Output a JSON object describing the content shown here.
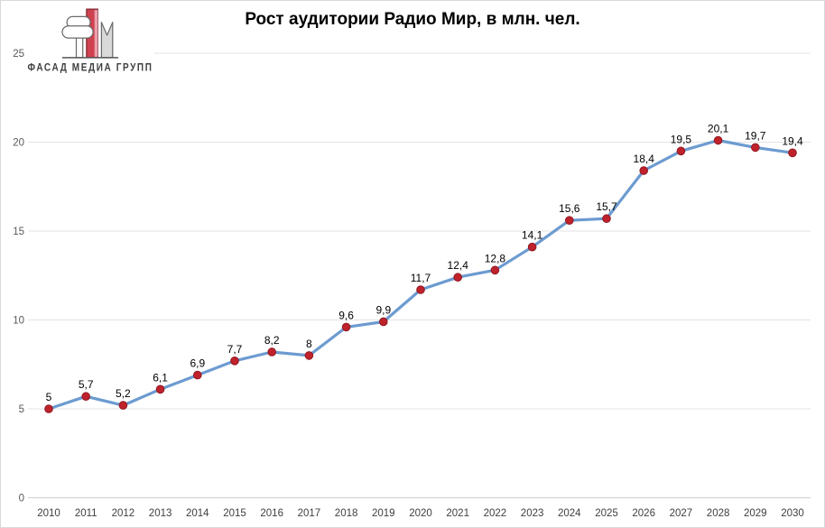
{
  "header": {
    "title": "Рост аудитории Радио Мир, в млн. чел."
  },
  "logo": {
    "text": "ФАСАД МЕДИА ГРУПП"
  },
  "chart_data": {
    "type": "line",
    "title": "Рост аудитории Радио Мир, в млн. чел.",
    "xlabel": "",
    "ylabel": "",
    "x": [
      2010,
      2011,
      2012,
      2013,
      2014,
      2015,
      2016,
      2017,
      2018,
      2019,
      2020,
      2021,
      2022,
      2023,
      2024,
      2025,
      2026,
      2027,
      2028,
      2029,
      2030
    ],
    "values": [
      5,
      5.7,
      5.2,
      6.1,
      6.9,
      7.7,
      8.2,
      8,
      9.6,
      9.9,
      11.7,
      12.4,
      12.8,
      14.1,
      15.6,
      15.7,
      18.4,
      19.5,
      20.1,
      19.7,
      19.4
    ],
    "point_labels": [
      "5",
      "5,7",
      "5,2",
      "6,1",
      "6,9",
      "7,7",
      "8,2",
      "8",
      "9,6",
      "9,9",
      "11,7",
      "12,4",
      "12,8",
      "14,1",
      "15,6",
      "15,7",
      "18,4",
      "19,5",
      "20,1",
      "19,7",
      "19,4"
    ],
    "ylim": [
      0,
      25
    ],
    "ytick_interval": 5,
    "yticks": [
      "0",
      "5",
      "10",
      "15",
      "20",
      "25"
    ],
    "grid": true,
    "legend": "none",
    "colors": {
      "line": "#6C9BD0",
      "marker_fill": "#C0222B",
      "marker_stroke": "#8E1822",
      "gridline": "#e3e3e3",
      "axis_line": "#cfcfcf",
      "ytick_text": "#595959",
      "xtick_text": "#3f3f3f",
      "data_label": "#000000"
    }
  }
}
